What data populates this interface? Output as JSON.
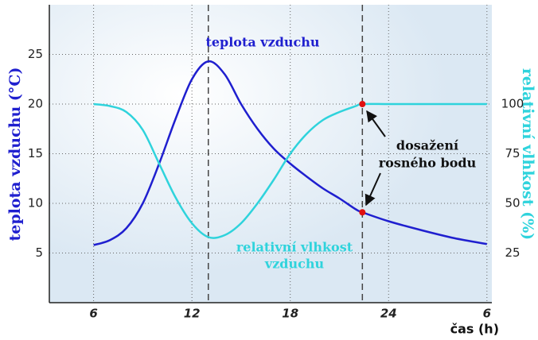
{
  "chart_data": {
    "type": "line",
    "x": [
      6,
      7,
      8,
      9,
      10,
      11,
      12,
      13,
      14,
      15,
      16,
      17,
      18,
      19,
      20,
      21,
      22,
      22.4,
      24,
      26,
      28,
      30
    ],
    "series": [
      {
        "name": "teplota vzduchu",
        "color": "#1f1fcf",
        "values": [
          5.8,
          6.3,
          7.5,
          10,
          14,
          18.5,
          22.5,
          24.3,
          23,
          20,
          17.5,
          15.5,
          14,
          12.7,
          11.5,
          10.5,
          9.4,
          9.1,
          8.2,
          7.3,
          6.5,
          5.9
        ]
      },
      {
        "name": "relativní vlhkost vzduchu",
        "color": "#2fd3dc",
        "axis": "y2",
        "values": [
          100,
          99,
          96,
          87,
          70,
          53,
          40,
          33,
          34,
          40,
          50,
          62,
          75,
          85,
          92,
          96,
          99,
          100,
          100,
          100,
          100,
          100
        ]
      }
    ],
    "xlim": [
      3.3,
      30.3
    ],
    "xticks": [
      6,
      12,
      18,
      24,
      {
        "value": 30,
        "label": "6"
      }
    ],
    "ylim": [
      0,
      30
    ],
    "yticks": [
      5,
      10,
      15,
      20,
      25
    ],
    "y2lim": [
      0,
      150
    ],
    "y2ticks": [
      25,
      50,
      75,
      100
    ],
    "xlabel": "čas (h)",
    "ylabel": "teplota vzduchu (°C)",
    "y2label": "relativní vlhkost (%)",
    "annotations": [
      "teplota vzduchu",
      "relativní vlhkost",
      "vzduchu",
      "dosažení",
      "rosného bodu"
    ],
    "grid": true
  }
}
